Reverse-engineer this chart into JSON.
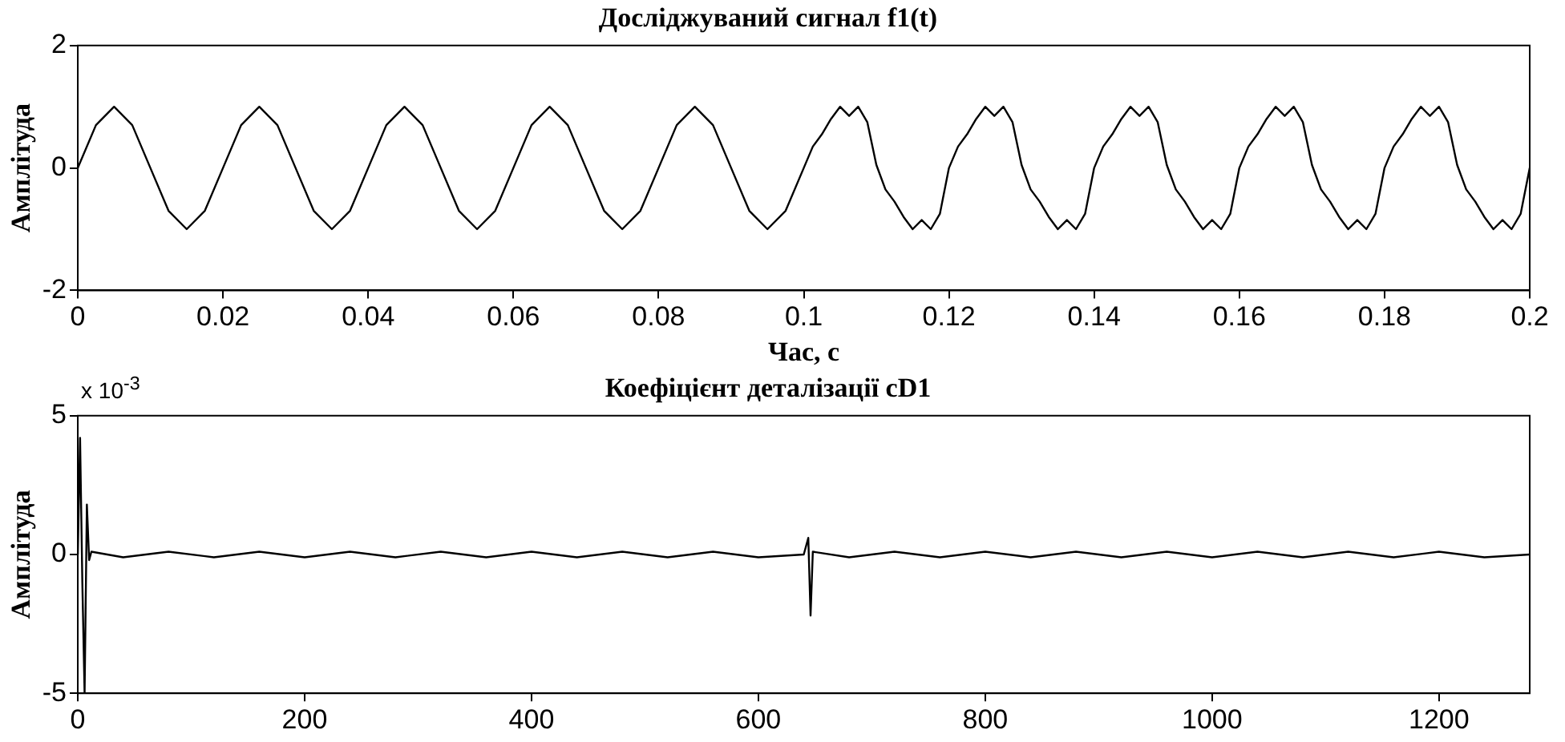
{
  "chart_data": [
    {
      "type": "line",
      "title": "Досліджуваний сигнал f1(t)",
      "xlabel": "Час, с",
      "ylabel": "Амплітуда",
      "grid": false,
      "marker": "none",
      "line_style": "solid",
      "xlim": [
        0,
        0.2
      ],
      "ylim": [
        -2,
        2
      ],
      "xticks": [
        0,
        0.02,
        0.04,
        0.06,
        0.08,
        0.1,
        0.12,
        0.14,
        0.16,
        0.18,
        0.2
      ],
      "yticks": [
        -2,
        0,
        2
      ],
      "x": [
        0,
        0.0025,
        0.005,
        0.0075,
        0.01,
        0.0125,
        0.015,
        0.0175,
        0.02,
        0.0225,
        0.025,
        0.0275,
        0.03,
        0.0325,
        0.035,
        0.0375,
        0.04,
        0.0425,
        0.045,
        0.0475,
        0.05,
        0.0525,
        0.055,
        0.0575,
        0.06,
        0.0625,
        0.065,
        0.0675,
        0.07,
        0.0725,
        0.075,
        0.0775,
        0.08,
        0.0825,
        0.085,
        0.0875,
        0.09,
        0.0925,
        0.095,
        0.0975,
        0.1,
        0.10125,
        0.1025,
        0.10375,
        0.105,
        0.10625,
        0.1075,
        0.10875,
        0.11,
        0.11125,
        0.1125,
        0.11375,
        0.115,
        0.11625,
        0.1175,
        0.11875,
        0.12,
        0.12125,
        0.1225,
        0.12375,
        0.125,
        0.12625,
        0.1275,
        0.12875,
        0.13,
        0.13125,
        0.1325,
        0.13375,
        0.135,
        0.13625,
        0.1375,
        0.13875,
        0.14,
        0.14125,
        0.1425,
        0.14375,
        0.145,
        0.14625,
        0.1475,
        0.14875,
        0.15,
        0.15125,
        0.1525,
        0.15375,
        0.155,
        0.15625,
        0.1575,
        0.15875,
        0.16,
        0.16125,
        0.1625,
        0.16375,
        0.165,
        0.16625,
        0.1675,
        0.16875,
        0.17,
        0.17125,
        0.1725,
        0.17375,
        0.175,
        0.17625,
        0.1775,
        0.17875,
        0.18,
        0.18125,
        0.1825,
        0.18375,
        0.185,
        0.18625,
        0.1875,
        0.18875,
        0.19,
        0.19125,
        0.1925,
        0.19375,
        0.195,
        0.19625,
        0.1975,
        0.19875,
        0.2
      ],
      "series": [
        {
          "color": "#000000",
          "values": [
            0,
            0.7,
            1,
            0.7,
            0,
            -0.7,
            -1,
            -0.7,
            0,
            0.7,
            1,
            0.7,
            0,
            -0.7,
            -1,
            -0.7,
            0,
            0.7,
            1,
            0.7,
            0,
            -0.7,
            -1,
            -0.7,
            0,
            0.7,
            1,
            0.7,
            0,
            -0.7,
            -1,
            -0.7,
            0,
            0.7,
            1,
            0.7,
            0,
            -0.7,
            -1,
            -0.7,
            0,
            0.35,
            0.55,
            0.8,
            1,
            0.85,
            1,
            0.75,
            0.05,
            -0.35,
            -0.55,
            -0.8,
            -1,
            -0.85,
            -1,
            -0.75,
            0,
            0.35,
            0.55,
            0.8,
            1,
            0.85,
            1,
            0.75,
            0.05,
            -0.35,
            -0.55,
            -0.8,
            -1,
            -0.85,
            -1,
            -0.75,
            0,
            0.35,
            0.55,
            0.8,
            1,
            0.85,
            1,
            0.75,
            0.05,
            -0.35,
            -0.55,
            -0.8,
            -1,
            -0.85,
            -1,
            -0.75,
            0,
            0.35,
            0.55,
            0.8,
            1,
            0.85,
            1,
            0.75,
            0.05,
            -0.35,
            -0.55,
            -0.8,
            -1,
            -0.85,
            -1,
            -0.75,
            0,
            0.35,
            0.55,
            0.8,
            1,
            0.85,
            1,
            0.75,
            0.05,
            -0.35,
            -0.55,
            -0.8,
            -1,
            -0.85,
            -1,
            -0.75,
            0
          ]
        }
      ]
    },
    {
      "type": "line",
      "title": "Коефіцієнт деталізації cD1",
      "ylabel": "Амплітуда",
      "grid": false,
      "marker": "none",
      "line_style": "solid",
      "annotations": [
        "x 10$^{-3}$"
      ],
      "xlim": [
        0,
        1280
      ],
      "ylim": [
        -5,
        5
      ],
      "xticks": [
        0,
        200,
        400,
        600,
        800,
        1000,
        1200
      ],
      "yticks": [
        -5,
        0,
        5
      ],
      "x": [
        0,
        2,
        4,
        6,
        8,
        10,
        12,
        40,
        80,
        120,
        160,
        200,
        240,
        280,
        320,
        360,
        400,
        440,
        480,
        520,
        560,
        600,
        640,
        644,
        646,
        648,
        680,
        720,
        760,
        800,
        840,
        880,
        920,
        960,
        1000,
        1040,
        1080,
        1120,
        1160,
        1200,
        1240,
        1280
      ],
      "series": [
        {
          "color": "#000000",
          "values": [
            0,
            4.2,
            -1,
            -5,
            1.8,
            -0.2,
            0.1,
            -0.1,
            0.1,
            -0.1,
            0.1,
            -0.1,
            0.1,
            -0.1,
            0.1,
            -0.1,
            0.1,
            -0.1,
            0.1,
            -0.1,
            0.1,
            -0.1,
            0,
            0.6,
            -2.2,
            0.1,
            -0.1,
            0.1,
            -0.1,
            0.1,
            -0.1,
            0.1,
            -0.1,
            0.1,
            -0.1,
            0.1,
            -0.1,
            0.1,
            -0.1,
            0.1,
            -0.1,
            0
          ]
        }
      ]
    }
  ]
}
